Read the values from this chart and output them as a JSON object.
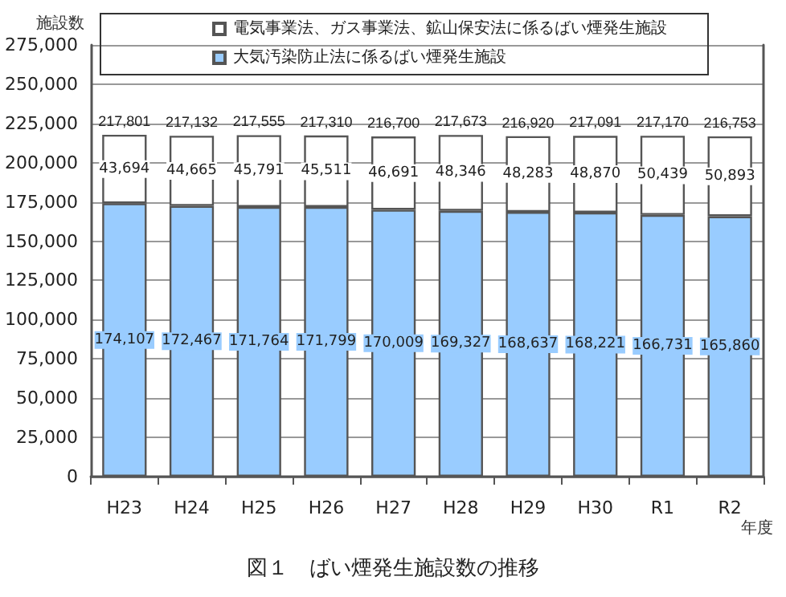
{
  "chart_data": {
    "type": "bar",
    "stacked": true,
    "title": "図１　ばい煙発生施設数の推移",
    "xlabel": "年度",
    "ylabel": "施設数",
    "categories": [
      "H23",
      "H24",
      "H25",
      "H26",
      "H27",
      "H28",
      "H29",
      "H30",
      "R1",
      "R2"
    ],
    "series": [
      {
        "name": "大気汚染防止法に係るばい煙発生施設",
        "color": "#99ccff",
        "values": [
          174107,
          172467,
          171764,
          171799,
          170009,
          169327,
          168637,
          168221,
          166731,
          165860
        ],
        "value_labels": [
          "174,107",
          "172,467",
          "171,764",
          "171,799",
          "170,009",
          "169,327",
          "168,637",
          "168,221",
          "166,731",
          "165,860"
        ]
      },
      {
        "name": "電気事業法、ガス事業法、鉱山保安法に係るばい煙発生施設",
        "color": "#ffffff",
        "values": [
          43694,
          44665,
          45791,
          45511,
          46691,
          48346,
          48283,
          48870,
          50439,
          50893
        ],
        "value_labels": [
          "43,694",
          "44,665",
          "45,791",
          "45,511",
          "46,691",
          "48,346",
          "48,283",
          "48,870",
          "50,439",
          "50,893"
        ]
      }
    ],
    "totals": [
      "217,801",
      "217,132",
      "217,555",
      "217,310",
      "216,700",
      "217,673",
      "216,920",
      "217,091",
      "217,170",
      "216,753"
    ],
    "ylim": [
      0,
      275000
    ],
    "yticks": [
      {
        "value": 0,
        "label": "0"
      },
      {
        "value": 25000,
        "label": "25,000"
      },
      {
        "value": 50000,
        "label": "50,000"
      },
      {
        "value": 75000,
        "label": "75,000"
      },
      {
        "value": 100000,
        "label": "100,000"
      },
      {
        "value": 125000,
        "label": "125,000"
      },
      {
        "value": 150000,
        "label": "150,000"
      },
      {
        "value": 175000,
        "label": "175,000"
      },
      {
        "value": 200000,
        "label": "200,000"
      },
      {
        "value": 225000,
        "label": "225,000"
      },
      {
        "value": 250000,
        "label": "250,000"
      },
      {
        "value": 275000,
        "label": "275,000"
      }
    ],
    "grid": "y",
    "legend": "top"
  }
}
